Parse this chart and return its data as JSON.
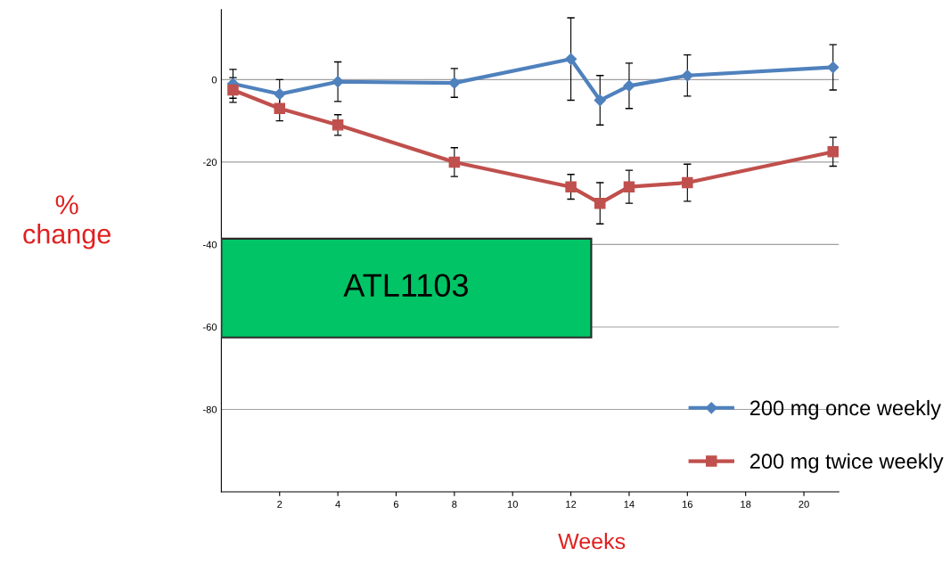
{
  "chart_data": {
    "type": "line",
    "xlabel": "Weeks",
    "ylabel": "%\nchange",
    "xlim": [
      0,
      21.2
    ],
    "xticks": [
      2,
      4,
      6,
      8,
      10,
      12,
      14,
      16,
      18,
      20
    ],
    "ylim": [
      -100,
      17
    ],
    "yticks": [
      0,
      -20,
      -40,
      -60,
      -80
    ],
    "grid": "y",
    "legend": "bottom right",
    "line_style": "solid",
    "series": [
      {
        "name": "200 mg once weekly",
        "color": "#4f81bd",
        "marker": "diamond",
        "x": [
          0.4,
          2,
          4,
          8,
          12,
          13,
          14,
          16,
          21
        ],
        "values": [
          -1,
          -3.5,
          -0.5,
          -0.8,
          5,
          -5,
          -1.5,
          1,
          3
        ],
        "errors": [
          3.5,
          3.5,
          4.8,
          3.5,
          10,
          6,
          5.5,
          5,
          5.5
        ]
      },
      {
        "name": "200 mg twice weekly",
        "color": "#c0504d",
        "marker": "square",
        "x": [
          0.4,
          2,
          4,
          8,
          12,
          13,
          14,
          16,
          21
        ],
        "values": [
          -2.5,
          -7,
          -11,
          -20,
          -26,
          -30,
          -26,
          -25,
          -17.5
        ],
        "errors": [
          3,
          3,
          2.5,
          3.5,
          3,
          5,
          4,
          4.5,
          3.5
        ]
      }
    ],
    "bands": [
      {
        "axis": "x",
        "from": 0,
        "to": 12.7,
        "label": "ATL1103",
        "color": "#00c465"
      }
    ]
  }
}
